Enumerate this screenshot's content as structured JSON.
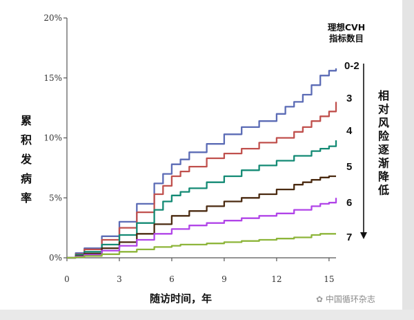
{
  "chart_data": {
    "type": "line",
    "title": "",
    "xlabel": "随访时间，年",
    "ylabel": "累积发病率",
    "xlim": [
      0,
      15.4
    ],
    "ylim": [
      0,
      20
    ],
    "x_ticks": [
      0,
      3,
      6,
      9,
      12,
      15
    ],
    "y_ticks": [
      0,
      5,
      10,
      15,
      20
    ],
    "x_tick_labels": [
      "0",
      "3",
      "6",
      "9",
      "12",
      "15"
    ],
    "y_tick_labels": [
      "0%",
      "5%",
      "10%",
      "15%",
      "20%"
    ],
    "legend_title": "理想CVH\n指标数目",
    "arrow_label": "相对风险逐渐降低",
    "grid": false,
    "series": [
      {
        "name": "0-2",
        "color": "#5b6bb5",
        "x": [
          0,
          0.5,
          1,
          2,
          3,
          4,
          5,
          5.5,
          6,
          6.5,
          7,
          8,
          9,
          10,
          11,
          12,
          12.5,
          13,
          13.5,
          14,
          14.5,
          15,
          15.4
        ],
        "y": [
          0,
          0.4,
          0.8,
          1.8,
          3.0,
          4.5,
          6.2,
          7.0,
          7.8,
          8.2,
          8.8,
          9.5,
          10.3,
          10.9,
          11.4,
          12.0,
          12.6,
          13.0,
          13.6,
          14.4,
          15.2,
          15.6,
          15.8
        ]
      },
      {
        "name": "3",
        "color": "#c0504d",
        "x": [
          0,
          0.5,
          1,
          2,
          3,
          4,
          5,
          5.5,
          6,
          6.5,
          7,
          8,
          9,
          10,
          11,
          12,
          13,
          13.5,
          14,
          14.5,
          15,
          15.4
        ],
        "y": [
          0,
          0.3,
          0.7,
          1.5,
          2.5,
          3.8,
          5.3,
          6.0,
          6.8,
          7.2,
          7.6,
          8.3,
          8.7,
          9.1,
          9.6,
          10.0,
          10.5,
          10.9,
          11.4,
          11.8,
          12.2,
          13.0
        ]
      },
      {
        "name": "4",
        "color": "#138a74",
        "x": [
          0,
          0.5,
          1,
          2,
          3,
          4,
          5,
          5.5,
          6,
          6.5,
          7,
          8,
          9,
          10,
          11,
          12,
          13,
          14,
          14.5,
          15,
          15.4
        ],
        "y": [
          0,
          0.25,
          0.5,
          1.1,
          1.9,
          2.9,
          4.0,
          4.7,
          5.2,
          5.5,
          5.8,
          6.3,
          6.8,
          7.3,
          7.7,
          8.1,
          8.5,
          8.9,
          9.1,
          9.3,
          9.8
        ]
      },
      {
        "name": "5",
        "color": "#4a2a10",
        "x": [
          0,
          0.5,
          1,
          2,
          3,
          4,
          5,
          6,
          7,
          8,
          9,
          10,
          11,
          12,
          13,
          13.5,
          14,
          14.5,
          15,
          15.4
        ],
        "y": [
          0,
          0.15,
          0.35,
          0.8,
          1.3,
          2.0,
          2.8,
          3.5,
          3.9,
          4.3,
          4.7,
          5.0,
          5.3,
          5.7,
          6.1,
          6.3,
          6.5,
          6.7,
          6.8,
          6.8
        ]
      },
      {
        "name": "6",
        "color": "#b144e8",
        "x": [
          0,
          0.5,
          1,
          2,
          3,
          4,
          5,
          6,
          7,
          8,
          9,
          10,
          11,
          12,
          13,
          14,
          14.5,
          15,
          15.4
        ],
        "y": [
          0,
          0.1,
          0.25,
          0.6,
          1.0,
          1.5,
          2.0,
          2.4,
          2.7,
          2.9,
          3.1,
          3.3,
          3.5,
          3.7,
          4.0,
          4.3,
          4.5,
          4.6,
          5.0
        ]
      },
      {
        "name": "7",
        "color": "#8db53a",
        "x": [
          0,
          0.5,
          1,
          2,
          3,
          4,
          5,
          6,
          6.5,
          7,
          8,
          9,
          10,
          11,
          12,
          13,
          14,
          14.5,
          15,
          15.4
        ],
        "y": [
          0,
          0.05,
          0.15,
          0.3,
          0.5,
          0.7,
          0.9,
          1.0,
          1.1,
          1.1,
          1.2,
          1.3,
          1.4,
          1.5,
          1.6,
          1.7,
          1.9,
          2.0,
          2.0,
          2.0
        ]
      }
    ]
  },
  "watermark": "中国循环杂志"
}
